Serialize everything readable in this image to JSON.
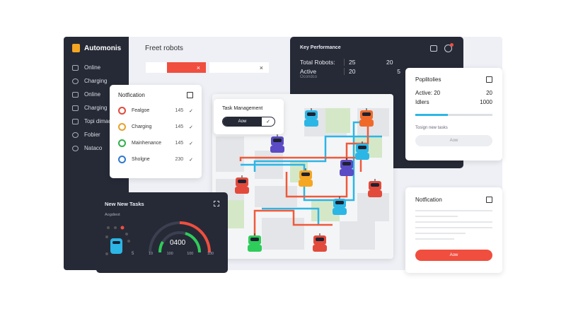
{
  "app": {
    "title": "Automonis",
    "page_title": "Freet robots"
  },
  "sidebar": {
    "items": [
      {
        "label": "Online"
      },
      {
        "label": "Charging"
      },
      {
        "label": "Online"
      },
      {
        "label": "Charging"
      },
      {
        "label": "Topi dimac"
      },
      {
        "label": "Fobier"
      },
      {
        "label": "Nataco"
      }
    ]
  },
  "filters": {
    "close": "×"
  },
  "notification": {
    "title": "Notfication",
    "items": [
      {
        "label": "Fealgoe",
        "count": "145",
        "color": "#e24a3b"
      },
      {
        "label": "Charging",
        "count": "145",
        "color": "#e8a22a"
      },
      {
        "label": "Mainhenance",
        "count": "145",
        "color": "#2fb04a"
      },
      {
        "label": "Sholgne",
        "count": "230",
        "color": "#2f78d0"
      }
    ],
    "check": "✓"
  },
  "task_management": {
    "title": "Task Management",
    "button": "Aow"
  },
  "key_performance": {
    "title": "Key Performance",
    "rows": [
      {
        "label": "Total Robots:",
        "v1": "25",
        "v2": "20"
      },
      {
        "label": "Active",
        "v1": "20",
        "v2": "5"
      }
    ],
    "sub": "Ocondco"
  },
  "policies": {
    "title": "Poplitolies",
    "active_label": "Active: 20",
    "active_val": "20",
    "idle_label": "Idlers",
    "idle_val": "1000",
    "progress": 0.42,
    "hint": "Tosign new tasks",
    "button": "Aow"
  },
  "new_tasks": {
    "title": "New New Tasks",
    "sub": "Aogdieot",
    "side_val": "5",
    "gauge_value": "0400",
    "ticks": [
      "10",
      "100",
      "100",
      "100"
    ]
  },
  "notification2": {
    "title": "Notfication",
    "button": "Aow"
  },
  "colors": {
    "accent": "#f04e3e",
    "dark": "#262a36",
    "blue": "#2cb6e6"
  }
}
